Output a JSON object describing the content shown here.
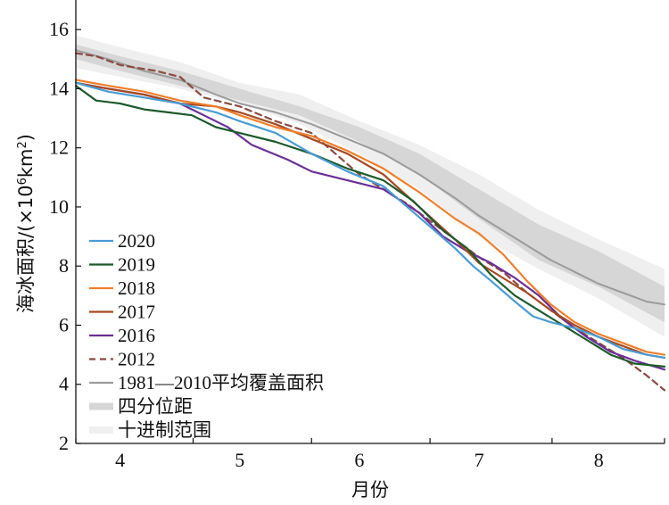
{
  "chart_data": {
    "type": "line",
    "title": "",
    "xlabel": "月份",
    "ylabel": "海冰面积/(×10⁶km²)",
    "ylabel_parts": {
      "prefix": "海冰面积/(×10",
      "exp1": "6",
      "mid": "km",
      "exp2": "2",
      "suffix": ")"
    },
    "xlim": [
      3.63,
      8.55
    ],
    "ylim": [
      2,
      17
    ],
    "month_ticks": [
      {
        "value": 4,
        "label": "4"
      },
      {
        "value": 5,
        "label": "5"
      },
      {
        "value": 6,
        "label": "6"
      },
      {
        "value": 7,
        "label": "7"
      },
      {
        "value": 8,
        "label": "8"
      }
    ],
    "month_boundaries": [
      3.63,
      4.61,
      5.6,
      6.59,
      7.61,
      8.55
    ],
    "y_ticks": [
      2,
      4,
      6,
      8,
      10,
      12,
      14,
      16
    ],
    "legend_position": "bottom-left",
    "decile_range": {
      "name": "十进制范围",
      "color": "#efefef",
      "x": [
        3.63,
        4.0,
        4.5,
        5.0,
        5.5,
        6.0,
        6.5,
        7.0,
        7.5,
        8.0,
        8.55
      ],
      "lower": [
        14.7,
        14.4,
        14.0,
        13.5,
        12.8,
        11.8,
        10.6,
        9.0,
        7.9,
        6.9,
        5.6
      ],
      "upper": [
        15.8,
        15.4,
        14.9,
        14.2,
        13.8,
        12.9,
        12.1,
        11.1,
        9.9,
        8.9,
        7.9
      ]
    },
    "interquartile_range": {
      "name": "四分位距",
      "color": "#d6d6d6",
      "x": [
        3.63,
        4.0,
        4.5,
        5.0,
        5.5,
        6.0,
        6.5,
        7.0,
        7.5,
        8.0,
        8.55
      ],
      "lower": [
        15.0,
        14.6,
        14.1,
        13.6,
        13.1,
        12.2,
        11.1,
        9.6,
        8.2,
        7.3,
        6.1
      ],
      "upper": [
        15.5,
        15.1,
        14.6,
        14.0,
        13.4,
        12.7,
        11.8,
        10.6,
        9.4,
        8.5,
        7.3
      ]
    },
    "series": [
      {
        "name": "2020",
        "color": "#4a9bd4",
        "dash": "",
        "x": [
          3.63,
          3.9,
          4.2,
          4.5,
          4.8,
          5.0,
          5.3,
          5.6,
          5.9,
          6.2,
          6.4,
          6.6,
          6.8,
          6.95,
          7.1,
          7.3,
          7.45,
          7.6,
          7.8,
          8.0,
          8.2,
          8.4,
          8.55
        ],
        "y": [
          14.2,
          13.9,
          13.7,
          13.5,
          13.2,
          12.9,
          12.5,
          11.8,
          11.2,
          10.7,
          10.0,
          9.3,
          8.6,
          8.0,
          7.5,
          6.8,
          6.3,
          6.1,
          5.9,
          5.6,
          5.2,
          5.0,
          4.9
        ]
      },
      {
        "name": "2019",
        "color": "#1d5a2c",
        "dash": "",
        "x": [
          3.63,
          3.8,
          4.0,
          4.2,
          4.4,
          4.6,
          4.8,
          5.0,
          5.3,
          5.6,
          5.9,
          6.2,
          6.45,
          6.7,
          6.9,
          7.1,
          7.3,
          7.5,
          7.7,
          7.9,
          8.1,
          8.3,
          8.55
        ],
        "y": [
          14.1,
          13.6,
          13.5,
          13.3,
          13.2,
          13.1,
          12.7,
          12.5,
          12.2,
          11.8,
          11.3,
          10.9,
          10.2,
          9.2,
          8.6,
          7.7,
          7.0,
          6.5,
          6.0,
          5.5,
          5.0,
          4.7,
          4.6
        ]
      },
      {
        "name": "2018",
        "color": "#ef7f2c",
        "dash": "",
        "x": [
          3.63,
          3.9,
          4.2,
          4.5,
          4.8,
          5.0,
          5.3,
          5.6,
          5.9,
          6.2,
          6.5,
          6.8,
          7.0,
          7.2,
          7.4,
          7.6,
          7.8,
          8.0,
          8.2,
          8.4,
          8.55
        ],
        "y": [
          14.3,
          14.1,
          13.9,
          13.6,
          13.4,
          13.1,
          12.7,
          12.4,
          11.9,
          11.3,
          10.5,
          9.6,
          9.1,
          8.4,
          7.5,
          6.7,
          6.1,
          5.7,
          5.4,
          5.1,
          5.0
        ]
      },
      {
        "name": "2017",
        "color": "#a54a22",
        "dash": "",
        "x": [
          3.63,
          3.9,
          4.2,
          4.5,
          4.8,
          5.0,
          5.3,
          5.6,
          5.9,
          6.2,
          6.5,
          6.8,
          7.0,
          7.2,
          7.4,
          7.6,
          7.8,
          8.0,
          8.2,
          8.4,
          8.55
        ],
        "y": [
          14.2,
          14.0,
          13.8,
          13.5,
          13.4,
          13.2,
          12.8,
          12.3,
          11.8,
          11.1,
          10.0,
          8.9,
          8.1,
          7.6,
          7.1,
          6.5,
          6.0,
          5.6,
          5.3,
          5.0,
          4.9
        ]
      },
      {
        "name": "2016",
        "color": "#6a2f96",
        "dash": "",
        "x": [
          3.63,
          3.9,
          4.2,
          4.5,
          4.7,
          4.9,
          5.1,
          5.4,
          5.6,
          5.9,
          6.2,
          6.5,
          6.7,
          6.9,
          7.1,
          7.3,
          7.5,
          7.7,
          7.9,
          8.1,
          8.3,
          8.55
        ],
        "y": [
          14.2,
          14.0,
          13.8,
          13.5,
          13.1,
          12.7,
          12.1,
          11.6,
          11.2,
          10.9,
          10.6,
          9.8,
          9.0,
          8.5,
          8.1,
          7.6,
          7.0,
          6.2,
          5.6,
          5.1,
          4.8,
          4.5
        ]
      },
      {
        "name": "2012",
        "color": "#8b4b42",
        "dash": "7,5",
        "x": [
          3.63,
          3.8,
          4.0,
          4.3,
          4.5,
          4.7,
          5.0,
          5.3,
          5.6,
          5.8,
          6.0,
          6.2,
          6.4,
          6.6,
          6.8,
          7.0,
          7.2,
          7.4,
          7.6,
          7.8,
          8.0,
          8.2,
          8.4,
          8.55
        ],
        "y": [
          15.2,
          15.1,
          14.8,
          14.6,
          14.4,
          13.7,
          13.4,
          12.9,
          12.5,
          11.8,
          11.1,
          10.6,
          10.1,
          9.5,
          8.9,
          8.3,
          7.8,
          7.1,
          6.5,
          5.9,
          5.4,
          4.9,
          4.3,
          3.8
        ]
      },
      {
        "name": "1981—2010平均覆盖面积",
        "color": "#9b9b9b",
        "dash": "",
        "x": [
          3.63,
          3.9,
          4.2,
          4.5,
          4.8,
          5.0,
          5.3,
          5.6,
          5.9,
          6.2,
          6.5,
          6.8,
          7.0,
          7.2,
          7.4,
          7.6,
          7.8,
          8.0,
          8.2,
          8.4,
          8.55
        ],
        "y": [
          15.3,
          15.0,
          14.6,
          14.3,
          13.8,
          13.5,
          13.2,
          12.8,
          12.3,
          11.8,
          11.1,
          10.3,
          9.7,
          9.2,
          8.7,
          8.2,
          7.8,
          7.4,
          7.1,
          6.8,
          6.7
        ]
      }
    ],
    "legend": [
      {
        "label": "2020",
        "kind": "line",
        "color": "#4a9bd4",
        "dash": ""
      },
      {
        "label": "2019",
        "kind": "line",
        "color": "#1d5a2c",
        "dash": ""
      },
      {
        "label": "2018",
        "kind": "line",
        "color": "#ef7f2c",
        "dash": ""
      },
      {
        "label": "2017",
        "kind": "line",
        "color": "#a54a22",
        "dash": ""
      },
      {
        "label": "2016",
        "kind": "line",
        "color": "#6a2f96",
        "dash": ""
      },
      {
        "label": "2012",
        "kind": "line",
        "color": "#8b4b42",
        "dash": "7,5"
      },
      {
        "label": "1981—2010平均覆盖面积",
        "kind": "line",
        "color": "#9b9b9b",
        "dash": ""
      },
      {
        "label": "四分位距",
        "kind": "band",
        "color": "#d6d6d6",
        "dash": ""
      },
      {
        "label": "十进制范围",
        "kind": "band",
        "color": "#efefef",
        "dash": ""
      }
    ]
  }
}
